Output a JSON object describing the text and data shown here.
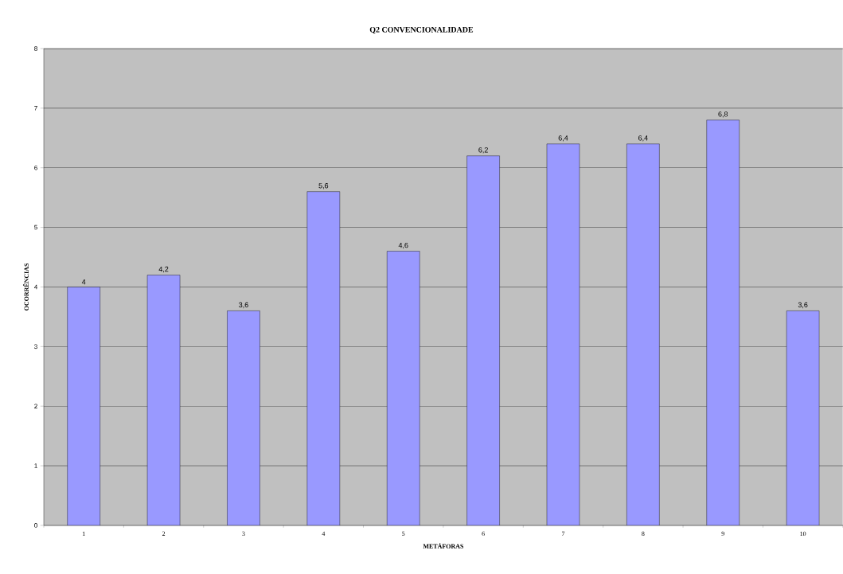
{
  "chart_data": {
    "type": "bar",
    "title": "Q2 CONVENCIONALIDADE",
    "xlabel": "METÁFORAS",
    "ylabel": "OCORRÊNCIAS",
    "categories": [
      "1",
      "2",
      "3",
      "4",
      "5",
      "6",
      "7",
      "8",
      "9",
      "10"
    ],
    "values": [
      4,
      4.2,
      3.6,
      5.6,
      4.6,
      6.2,
      6.4,
      6.4,
      6.8,
      3.6
    ],
    "value_labels": [
      "4",
      "4,2",
      "3,6",
      "5,6",
      "4,6",
      "6,2",
      "6,4",
      "6,4",
      "6,8",
      "3,6"
    ],
    "color": "#9999ff",
    "ylim": [
      0,
      8
    ],
    "yticks": [
      0,
      1,
      2,
      3,
      4,
      5,
      6,
      7,
      8
    ],
    "grid": "y"
  }
}
